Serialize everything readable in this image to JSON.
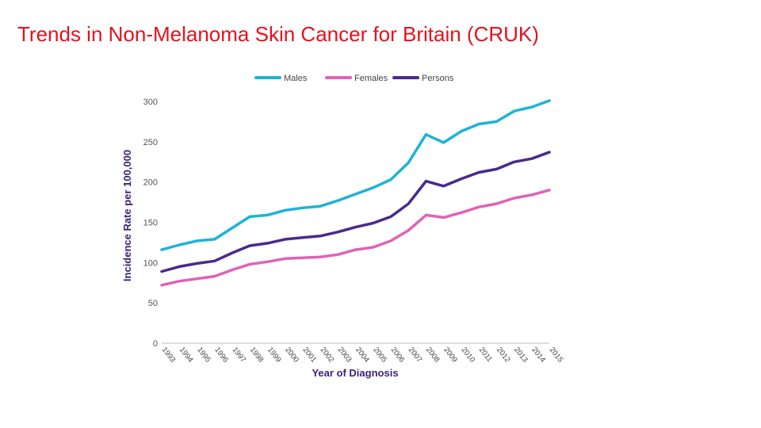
{
  "slide": {
    "title": "Trends in Non-Melanoma Skin Cancer for Britain (CRUK)"
  },
  "chart_data": {
    "type": "line",
    "title": "",
    "xlabel": "Year of Diagnosis",
    "ylabel": "Incidence Rate per 100,000",
    "ylim": [
      0,
      300
    ],
    "yticks": [
      0,
      50,
      100,
      150,
      200,
      250,
      300
    ],
    "grid": false,
    "legend_position": "top",
    "categories": [
      "1993",
      "1994",
      "1995",
      "1996",
      "1997",
      "1998",
      "1999",
      "2000",
      "2001",
      "2002",
      "2003",
      "2004",
      "2005",
      "2006",
      "2007",
      "2008",
      "2009",
      "2010",
      "2011",
      "2012",
      "2013",
      "2014",
      "2015"
    ],
    "series": [
      {
        "name": "Males",
        "color": "#1fb3d6",
        "values": [
          116,
          122,
          127,
          129,
          143,
          157,
          159,
          165,
          168,
          170,
          177,
          185,
          193,
          203,
          224,
          259,
          249,
          263,
          272,
          275,
          288,
          293,
          301
        ]
      },
      {
        "name": "Females",
        "color": "#e062b8",
        "values": [
          72,
          77,
          80,
          83,
          91,
          98,
          101,
          105,
          106,
          107,
          110,
          116,
          119,
          127,
          140,
          159,
          156,
          162,
          169,
          173,
          180,
          184,
          190
        ]
      },
      {
        "name": "Persons",
        "color": "#4a2a8c",
        "values": [
          89,
          95,
          99,
          102,
          112,
          121,
          124,
          129,
          131,
          133,
          138,
          144,
          149,
          157,
          173,
          201,
          195,
          204,
          212,
          216,
          225,
          229,
          237
        ]
      }
    ]
  }
}
